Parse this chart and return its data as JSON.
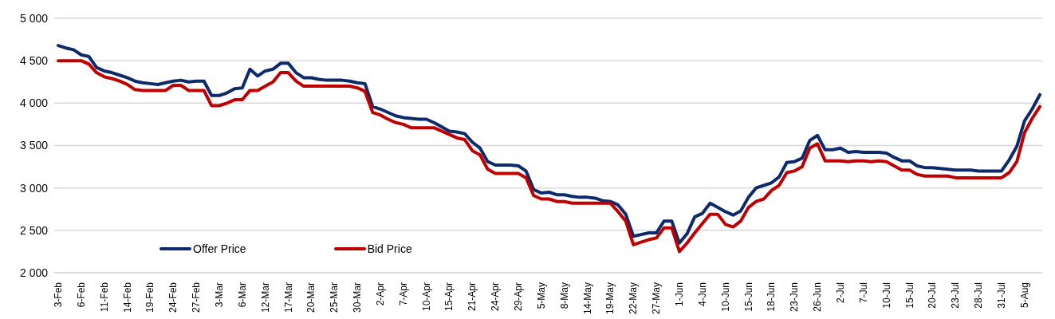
{
  "chart_data": {
    "type": "line",
    "categories": [
      "3-Feb",
      null,
      null,
      "6-Feb",
      null,
      null,
      "11-Feb",
      null,
      null,
      "14-Feb",
      null,
      null,
      "19-Feb",
      null,
      null,
      "24-Feb",
      null,
      null,
      "27-Feb",
      null,
      null,
      "3-Mar",
      null,
      null,
      "6-Mar",
      null,
      null,
      "12-Mar",
      null,
      null,
      "17-Mar",
      null,
      null,
      "20-Mar",
      null,
      null,
      "25-Mar",
      null,
      null,
      "30-Mar",
      null,
      null,
      "2-Apr",
      null,
      null,
      "7-Apr",
      null,
      null,
      "10-Apr",
      null,
      null,
      "15-Apr",
      null,
      null,
      "21-Apr",
      null,
      null,
      "24-Apr",
      null,
      null,
      "29-Apr",
      null,
      null,
      "5-May",
      null,
      null,
      "8-May",
      null,
      null,
      "14-May",
      null,
      null,
      "19-May",
      null,
      null,
      "22-May",
      null,
      null,
      "27-May",
      null,
      null,
      "1-Jun",
      null,
      null,
      "4-Jun",
      null,
      null,
      "10-Jun",
      null,
      null,
      "15-Jun",
      null,
      null,
      "18-Jun",
      null,
      null,
      "23-Jun",
      null,
      null,
      "26-Jun",
      null,
      null,
      "2-Jul",
      null,
      null,
      "7-Jul",
      null,
      null,
      "10-Jul",
      null,
      null,
      "15-Jul",
      null,
      null,
      "20-Jul",
      null,
      null,
      "23-Jul",
      null,
      null,
      "28-Jul",
      null,
      null,
      "31-Jul",
      null,
      null,
      "5-Aug",
      null,
      null
    ],
    "series": [
      {
        "name": "Offer Price",
        "color": "#0d2a6b",
        "values": [
          4680,
          4650,
          4630,
          4570,
          4550,
          4420,
          4380,
          4360,
          4330,
          4300,
          4260,
          4240,
          4230,
          4220,
          4240,
          4260,
          4270,
          4250,
          4260,
          4260,
          4090,
          4090,
          4120,
          4170,
          4180,
          4400,
          4320,
          4380,
          4400,
          4470,
          4470,
          4360,
          4300,
          4300,
          4280,
          4270,
          4270,
          4270,
          4260,
          4240,
          4230,
          3960,
          3930,
          3890,
          3850,
          3830,
          3820,
          3810,
          3810,
          3770,
          3720,
          3670,
          3660,
          3640,
          3540,
          3470,
          3310,
          3270,
          3270,
          3270,
          3260,
          3200,
          2980,
          2940,
          2950,
          2920,
          2920,
          2900,
          2890,
          2890,
          2880,
          2850,
          2840,
          2800,
          2690,
          2430,
          2450,
          2470,
          2470,
          2610,
          2610,
          2350,
          2460,
          2660,
          2700,
          2820,
          2770,
          2720,
          2680,
          2730,
          2890,
          3000,
          3030,
          3060,
          3130,
          3300,
          3310,
          3350,
          3560,
          3620,
          3450,
          3450,
          3470,
          3420,
          3430,
          3420,
          3420,
          3420,
          3410,
          3360,
          3320,
          3320,
          3260,
          3240,
          3240,
          3230,
          3220,
          3210,
          3210,
          3210,
          3200,
          3200,
          3200,
          3200,
          3330,
          3490,
          3790,
          3930,
          4100
        ]
      },
      {
        "name": "Bid Price",
        "color": "#c00000",
        "values": [
          4500,
          4500,
          4500,
          4500,
          4460,
          4360,
          4310,
          4290,
          4260,
          4220,
          4160,
          4150,
          4150,
          4150,
          4150,
          4210,
          4210,
          4150,
          4150,
          4150,
          3970,
          3970,
          4000,
          4040,
          4040,
          4150,
          4150,
          4200,
          4250,
          4360,
          4360,
          4260,
          4200,
          4200,
          4200,
          4200,
          4200,
          4200,
          4200,
          4180,
          4140,
          3890,
          3860,
          3810,
          3770,
          3750,
          3710,
          3710,
          3710,
          3710,
          3670,
          3630,
          3590,
          3570,
          3440,
          3390,
          3220,
          3170,
          3170,
          3170,
          3170,
          3120,
          2910,
          2870,
          2870,
          2840,
          2840,
          2820,
          2820,
          2820,
          2820,
          2820,
          2820,
          2720,
          2610,
          2330,
          2360,
          2390,
          2410,
          2530,
          2530,
          2250,
          2350,
          2470,
          2580,
          2690,
          2690,
          2570,
          2540,
          2610,
          2770,
          2840,
          2870,
          2970,
          3030,
          3180,
          3200,
          3250,
          3470,
          3520,
          3320,
          3320,
          3320,
          3310,
          3320,
          3320,
          3310,
          3320,
          3310,
          3260,
          3210,
          3210,
          3160,
          3140,
          3140,
          3140,
          3140,
          3120,
          3120,
          3120,
          3120,
          3120,
          3120,
          3120,
          3180,
          3310,
          3650,
          3820,
          3960
        ]
      }
    ],
    "ylim": [
      2000,
      5000
    ],
    "yticks": [
      {
        "value": 2000,
        "label": "2 000"
      },
      {
        "value": 2500,
        "label": "2 500"
      },
      {
        "value": 3000,
        "label": "3 000"
      },
      {
        "value": 3500,
        "label": "3 500"
      },
      {
        "value": 4000,
        "label": "4 000"
      },
      {
        "value": 4500,
        "label": "4 500"
      },
      {
        "value": 5000,
        "label": "5 000"
      }
    ],
    "grid": "y",
    "legend": "bottom left",
    "marker": "none",
    "line_style": "solid"
  }
}
